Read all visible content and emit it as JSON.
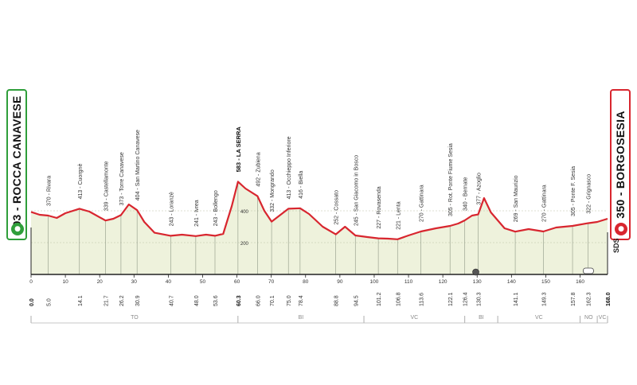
{
  "start": {
    "label": "393 - ROCCA CANAVESE",
    "icon": "start-cyclist-icon",
    "color": "#2f9e3a"
  },
  "finish": {
    "label": "350 - BORGOSESIA",
    "icon": "finish-cyclist-icon",
    "color": "#d8262f"
  },
  "sds_label": "SDS",
  "chart_data": {
    "type": "area",
    "title": "",
    "xlabel": "",
    "ylabel": "",
    "xlim": [
      0,
      168
    ],
    "ylim": [
      0,
      800
    ],
    "x_ticks": [
      0,
      10,
      20,
      30,
      40,
      50,
      60,
      70,
      80,
      90,
      100,
      110,
      120,
      130,
      140,
      150,
      160
    ],
    "y_ticks": [
      200,
      400
    ],
    "line_color": "#d8262f",
    "fill_color": "#eef2dc",
    "profile": [
      [
        0,
        393
      ],
      [
        2.5,
        375
      ],
      [
        5,
        370
      ],
      [
        7.5,
        355
      ],
      [
        10,
        385
      ],
      [
        14.1,
        413
      ],
      [
        17,
        395
      ],
      [
        21.7,
        339
      ],
      [
        24,
        350
      ],
      [
        26.2,
        373
      ],
      [
        28.5,
        440
      ],
      [
        30.9,
        404
      ],
      [
        33,
        330
      ],
      [
        36,
        262
      ],
      [
        40.7,
        243
      ],
      [
        44,
        250
      ],
      [
        48,
        241
      ],
      [
        51,
        250
      ],
      [
        53.6,
        243
      ],
      [
        56,
        255
      ],
      [
        58.5,
        430
      ],
      [
        60.3,
        583
      ],
      [
        62.5,
        540
      ],
      [
        66,
        492
      ],
      [
        68,
        400
      ],
      [
        70.1,
        332
      ],
      [
        73,
        380
      ],
      [
        75,
        413
      ],
      [
        78.4,
        416
      ],
      [
        81,
        380
      ],
      [
        85,
        300
      ],
      [
        88.8,
        252
      ],
      [
        91.5,
        300
      ],
      [
        94.5,
        245
      ],
      [
        98,
        235
      ],
      [
        101.2,
        227
      ],
      [
        104,
        225
      ],
      [
        106.8,
        221
      ],
      [
        110,
        245
      ],
      [
        113.6,
        270
      ],
      [
        118,
        290
      ],
      [
        122.1,
        305
      ],
      [
        124.5,
        320
      ],
      [
        126.4,
        340
      ],
      [
        128.5,
        370
      ],
      [
        130.3,
        377
      ],
      [
        132,
        480
      ],
      [
        134,
        390
      ],
      [
        138,
        290
      ],
      [
        141.1,
        269
      ],
      [
        145,
        285
      ],
      [
        149.3,
        270
      ],
      [
        153,
        295
      ],
      [
        157.8,
        305
      ],
      [
        162.3,
        322
      ],
      [
        165,
        330
      ],
      [
        168,
        350
      ]
    ],
    "distance_labels": [
      "0.0",
      "5.0",
      "14.1",
      "21.7",
      "26.2",
      "30.9",
      "40.7",
      "48.0",
      "53.6",
      "60.3",
      "66.0",
      "70.1",
      "75.0",
      "78.4",
      "88.8",
      "94.5",
      "101.2",
      "106.8",
      "113.6",
      "122.1",
      "126.4",
      "130.3",
      "141.1",
      "149.3",
      "157.8",
      "162.3",
      "168.0"
    ],
    "places": [
      {
        "km": 5.0,
        "label": "370 - Rivara"
      },
      {
        "km": 14.1,
        "label": "413 - Cuorgnè"
      },
      {
        "km": 21.7,
        "label": "339 - Castellamonte"
      },
      {
        "km": 26.2,
        "label": "373 - Torre Canavese"
      },
      {
        "km": 30.9,
        "label": "404 - San Martino Canavese"
      },
      {
        "km": 40.7,
        "label": "243 - Loranzè"
      },
      {
        "km": 48.0,
        "label": "241 - Ivrea"
      },
      {
        "km": 53.6,
        "label": "243 - Bollengo"
      },
      {
        "km": 60.3,
        "label": "583 - LA SERRA",
        "bold": true
      },
      {
        "km": 66.0,
        "label": "492 - Zubiena"
      },
      {
        "km": 70.1,
        "label": "332 - Mongrando"
      },
      {
        "km": 75.0,
        "label": "413 - Occhieppo Inferiore"
      },
      {
        "km": 78.4,
        "label": "416 - Biella"
      },
      {
        "km": 88.8,
        "label": "252 - Cossato"
      },
      {
        "km": 94.5,
        "label": "245 - San Giacomo in Bosco"
      },
      {
        "km": 101.2,
        "label": "227 - Rovasenda"
      },
      {
        "km": 106.8,
        "label": "221 - Lenta"
      },
      {
        "km": 113.6,
        "label": "270 - Gattinara"
      },
      {
        "km": 122.1,
        "label": "305 - Rot. Ponte Fiume Sesia"
      },
      {
        "km": 126.4,
        "label": "340 - Bernate"
      },
      {
        "km": 130.3,
        "label": "377 - Azoglio"
      },
      {
        "km": 141.1,
        "label": "269 - San Maurizio"
      },
      {
        "km": 149.3,
        "label": "270 - Gattinara"
      },
      {
        "km": 157.8,
        "label": "305 - Ponte F. Sesia"
      },
      {
        "km": 162.3,
        "label": "322 - Grignasco"
      }
    ],
    "provinces": [
      {
        "from": 0,
        "to": 60.3,
        "label": "TO"
      },
      {
        "from": 60.3,
        "to": 97,
        "label": "BI"
      },
      {
        "from": 97,
        "to": 126.4,
        "label": "VC"
      },
      {
        "from": 126.4,
        "to": 136,
        "label": "BI"
      },
      {
        "from": 136,
        "to": 160,
        "label": "VC"
      },
      {
        "from": 160,
        "to": 165,
        "label": "NO"
      },
      {
        "from": 165,
        "to": 168,
        "label": "VC"
      }
    ]
  }
}
